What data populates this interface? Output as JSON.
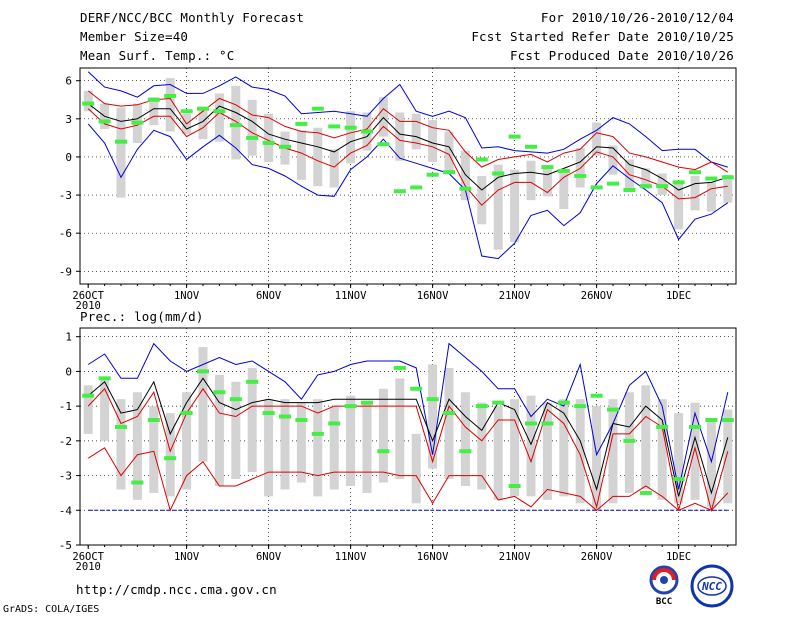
{
  "header": {
    "title": "DERF/NCC/BCC Monthly Forecast",
    "member_size": "Member Size=40",
    "variable_top": "Mean Surf. Temp.: °C",
    "forecast_period": "For 2010/10/26-2010/12/04",
    "started_refer": "Fcst Started Refer Date 2010/10/25",
    "produced": "Fcst Produced Date 2010/10/26"
  },
  "footer": {
    "url": "http://cmdp.ncc.cma.gov.cn",
    "grads": "GrADS: COLA/IGES",
    "logo_bcc_text": "BCC",
    "logo_ncc_text": "NCC"
  },
  "colors": {
    "envelope": "#0000dd",
    "ensemble": "#dd0000",
    "mean": "#000000",
    "observed": "#44ee44",
    "box": "#d3d3d3",
    "baseline": "#0000cc"
  },
  "x_ticks": [
    "26OCT",
    "1NOV",
    "6NOV",
    "11NOV",
    "16NOV",
    "21NOV",
    "26NOV",
    "1DEC"
  ],
  "x_year_label": "2010",
  "chart_data": [
    {
      "type": "line",
      "title": "Mean Surf. Temp.: °C",
      "ylabel": "°C",
      "ylim": [
        -10,
        7
      ],
      "yticks": [
        6,
        3,
        0,
        -3,
        -6,
        -9
      ],
      "x_start": "2010-10-26",
      "n_days": 40,
      "series": [
        {
          "name": "max",
          "values": [
            6.7,
            5.5,
            5.2,
            4.7,
            5.6,
            5.7,
            5.0,
            5.0,
            5.6,
            6.3,
            5.5,
            5.3,
            4.8,
            3.4,
            3.5,
            3.6,
            3.4,
            3.2,
            4.6,
            5.7,
            3.6,
            3.2,
            3.6,
            3.1,
            0.7,
            0.8,
            0.5,
            0.4,
            0.3,
            0.6,
            1.4,
            2.1,
            3.1,
            2.6,
            1.6,
            0.5,
            0.6,
            0.6,
            -0.4,
            -0.8
          ]
        },
        {
          "name": "p75",
          "values": [
            5.2,
            4.2,
            4.0,
            4.1,
            4.5,
            4.6,
            2.6,
            3.6,
            4.6,
            4.1,
            3.3,
            3.1,
            2.4,
            2.0,
            1.9,
            1.5,
            1.9,
            2.2,
            3.8,
            2.8,
            2.8,
            2.3,
            2.1,
            0.4,
            -0.8,
            -0.2,
            0.0,
            0.2,
            -0.4,
            0.3,
            0.6,
            1.9,
            1.6,
            0.3,
            0.0,
            -0.4,
            -0.8,
            -1.0,
            -0.4,
            -1.2
          ]
        },
        {
          "name": "mean",
          "values": [
            4.2,
            3.2,
            2.8,
            3.0,
            3.8,
            3.8,
            2.2,
            2.8,
            4.0,
            3.5,
            2.8,
            1.8,
            1.4,
            1.1,
            0.8,
            0.4,
            1.2,
            1.6,
            3.1,
            1.8,
            1.6,
            1.1,
            0.8,
            -1.4,
            -2.6,
            -1.6,
            -1.3,
            -1.2,
            -1.4,
            -0.9,
            -0.4,
            0.8,
            0.7,
            -0.6,
            -1.0,
            -1.7,
            -2.6,
            -2.1,
            -2.0,
            -1.6
          ]
        },
        {
          "name": "p25",
          "values": [
            3.8,
            2.6,
            2.2,
            2.5,
            3.2,
            3.2,
            1.6,
            2.3,
            3.5,
            2.8,
            1.9,
            1.3,
            0.7,
            0.3,
            -0.3,
            -0.8,
            0.3,
            0.9,
            2.4,
            1.3,
            1.1,
            0.8,
            0.2,
            -2.3,
            -3.8,
            -2.6,
            -2.0,
            -2.0,
            -2.8,
            -1.6,
            -0.9,
            0.4,
            0.0,
            -1.4,
            -1.8,
            -2.3,
            -3.3,
            -3.2,
            -2.5,
            -2.3
          ]
        },
        {
          "name": "min",
          "values": [
            2.6,
            1.1,
            -1.6,
            0.6,
            2.1,
            1.6,
            -0.2,
            0.8,
            1.7,
            0.7,
            -0.6,
            -0.9,
            -1.5,
            -2.3,
            -3.0,
            -3.1,
            -1.0,
            0.0,
            1.4,
            -0.1,
            -0.5,
            -0.9,
            -1.3,
            -2.6,
            -7.8,
            -8.0,
            -6.8,
            -4.6,
            -4.2,
            -5.4,
            -4.4,
            -2.1,
            -0.7,
            -1.7,
            -2.6,
            -3.6,
            -6.5,
            -4.9,
            -4.5,
            -3.6
          ]
        }
      ],
      "boxes": [
        [
          5.2,
          3.6
        ],
        [
          4.2,
          2.2
        ],
        [
          3.9,
          -3.2
        ],
        [
          4.2,
          1.1
        ],
        [
          4.7,
          2.5
        ],
        [
          6.2,
          2.0
        ],
        [
          3.4,
          1.8
        ],
        [
          3.7,
          1.4
        ],
        [
          5.0,
          1.2
        ],
        [
          5.6,
          -0.2
        ],
        [
          4.5,
          0.1
        ],
        [
          3.4,
          -0.4
        ],
        [
          2.0,
          -0.6
        ],
        [
          2.1,
          -1.8
        ],
        [
          2.3,
          -2.3
        ],
        [
          0.6,
          -2.4
        ],
        [
          3.6,
          -0.5
        ],
        [
          3.5,
          0.5
        ],
        [
          4.7,
          1.6
        ],
        [
          3.5,
          -0.3
        ],
        [
          3.4,
          0.6
        ],
        [
          2.9,
          -0.4
        ],
        [
          2.0,
          -1.2
        ],
        [
          0.5,
          -3.4
        ],
        [
          -1.5,
          -5.3
        ],
        [
          -0.6,
          -7.3
        ],
        [
          -1.0,
          -6.7
        ],
        [
          -0.3,
          -3.4
        ],
        [
          -0.8,
          -3.1
        ],
        [
          -1.0,
          -4.1
        ],
        [
          0.7,
          -2.4
        ],
        [
          2.7,
          0.1
        ],
        [
          0.9,
          -1.4
        ],
        [
          -0.2,
          -2.5
        ],
        [
          -0.9,
          -2.5
        ],
        [
          -1.3,
          -3.0
        ],
        [
          -2.0,
          -5.7
        ],
        [
          -1.5,
          -4.2
        ],
        [
          -2.0,
          -4.3
        ],
        [
          -1.4,
          -3.6
        ]
      ],
      "observed": [
        4.2,
        2.8,
        1.2,
        2.7,
        4.5,
        4.8,
        3.6,
        3.8,
        3.6,
        2.5,
        1.5,
        1.1,
        0.8,
        2.6,
        3.8,
        2.4,
        2.3,
        2.0,
        1.0,
        -2.7,
        -2.4,
        -1.4,
        -1.2,
        -2.5,
        -0.2,
        -1.3,
        1.6,
        0.8,
        -0.8,
        -1.1,
        -1.5,
        -2.4,
        -2.1,
        -2.6,
        -2.3,
        -2.3,
        -2.0,
        -1.2,
        -1.7,
        -1.6
      ]
    },
    {
      "type": "line",
      "title": "Prec.: log(mm/d)",
      "ylabel": "log(mm/d)",
      "ylim": [
        -5,
        1.25
      ],
      "yticks": [
        1,
        0,
        -1,
        -2,
        -3,
        -4,
        -5
      ],
      "x_start": "2010-10-26",
      "n_days": 40,
      "series": [
        {
          "name": "max",
          "values": [
            0.2,
            0.5,
            -0.2,
            -0.2,
            0.8,
            0.3,
            0.0,
            0.2,
            0.4,
            0.2,
            0.3,
            0.0,
            -0.3,
            -0.8,
            -0.1,
            0.0,
            0.2,
            0.3,
            0.3,
            0.3,
            0.1,
            -2.4,
            0.8,
            0.4,
            0.0,
            -0.5,
            -0.5,
            -1.3,
            -0.8,
            -1.0,
            0.2,
            -2.4,
            -1.5,
            -0.4,
            0.0,
            -1.0,
            -3.4,
            -1.2,
            -2.6,
            -0.6
          ]
        },
        {
          "name": "mean",
          "values": [
            -0.7,
            -0.3,
            -1.2,
            -1.1,
            -0.3,
            -1.8,
            -0.9,
            -0.2,
            -0.9,
            -1.1,
            -0.9,
            -0.8,
            -0.9,
            -0.9,
            -0.9,
            -0.8,
            -0.8,
            -0.8,
            -0.8,
            -0.8,
            -0.8,
            -2.0,
            -0.8,
            -1.3,
            -1.7,
            -0.9,
            -1.1,
            -2.1,
            -0.9,
            -1.2,
            -2.0,
            -3.4,
            -1.5,
            -1.6,
            -1.0,
            -1.4,
            -3.6,
            -1.9,
            -3.5,
            -1.9
          ]
        },
        {
          "name": "p75",
          "values": [
            -1.0,
            -0.5,
            -1.5,
            -1.3,
            -0.6,
            -2.3,
            -1.2,
            -0.5,
            -1.2,
            -1.3,
            -1.0,
            -1.0,
            -1.0,
            -1.0,
            -1.2,
            -1.0,
            -1.0,
            -1.0,
            -1.0,
            -1.0,
            -1.0,
            -2.6,
            -1.0,
            -1.6,
            -2.0,
            -1.4,
            -1.4,
            -2.6,
            -1.1,
            -1.5,
            -2.4,
            -3.9,
            -1.8,
            -1.8,
            -1.3,
            -1.6,
            -4.0,
            -2.2,
            -4.0,
            -2.3
          ]
        },
        {
          "name": "p25",
          "values": [
            -2.5,
            -2.2,
            -3.0,
            -2.4,
            -2.3,
            -4.0,
            -3.0,
            -2.6,
            -3.3,
            -3.3,
            -3.1,
            -2.9,
            -2.9,
            -2.9,
            -3.0,
            -2.9,
            -2.9,
            -2.9,
            -2.9,
            -3.0,
            -3.0,
            -3.8,
            -3.0,
            -3.0,
            -3.0,
            -3.7,
            -3.6,
            -3.9,
            -3.4,
            -3.5,
            -3.6,
            -4.0,
            -3.6,
            -3.6,
            -3.3,
            -3.6,
            -4.0,
            -3.8,
            -4.0,
            -3.5
          ]
        }
      ],
      "boxes": [
        [
          -0.4,
          -1.8
        ],
        [
          -0.2,
          -2.0
        ],
        [
          -0.8,
          -3.4
        ],
        [
          -0.6,
          -3.7
        ],
        [
          -1.0,
          -3.5
        ],
        [
          -1.2,
          -3.6
        ],
        [
          -0.6,
          -3.4
        ],
        [
          0.7,
          -2.6
        ],
        [
          -0.1,
          -3.3
        ],
        [
          -0.3,
          -3.1
        ],
        [
          0.1,
          -2.9
        ],
        [
          -0.8,
          -3.6
        ],
        [
          -0.8,
          -3.4
        ],
        [
          -0.9,
          -3.2
        ],
        [
          -0.8,
          -3.6
        ],
        [
          -1.0,
          -3.4
        ],
        [
          -0.7,
          -3.3
        ],
        [
          -0.9,
          -3.5
        ],
        [
          -0.5,
          -3.2
        ],
        [
          -0.2,
          -3.1
        ],
        [
          -1.8,
          -3.8
        ],
        [
          0.2,
          -2.8
        ],
        [
          0.1,
          -3.1
        ],
        [
          -0.6,
          -3.3
        ],
        [
          -0.9,
          -3.4
        ],
        [
          -1.0,
          -3.7
        ],
        [
          -0.8,
          -3.6
        ],
        [
          -0.7,
          -3.6
        ],
        [
          -0.9,
          -3.7
        ],
        [
          -0.8,
          -3.6
        ],
        [
          -0.8,
          -3.8
        ],
        [
          -1.0,
          -4.0
        ],
        [
          -0.8,
          -3.8
        ],
        [
          -0.6,
          -3.5
        ],
        [
          -0.4,
          -3.4
        ],
        [
          -0.8,
          -3.7
        ],
        [
          -1.2,
          -3.8
        ],
        [
          -0.9,
          -3.7
        ],
        [
          -1.4,
          -3.9
        ],
        [
          -1.1,
          -3.8
        ]
      ],
      "observed": [
        -0.7,
        -0.2,
        -1.6,
        -3.2,
        -1.4,
        -2.5,
        -1.2,
        0.0,
        -0.6,
        -0.8,
        -0.3,
        -1.2,
        -1.3,
        -1.4,
        -1.8,
        -1.5,
        -1.0,
        -0.9,
        -2.3,
        0.1,
        -0.5,
        -0.8,
        -1.2,
        -2.3,
        -1.0,
        -0.9,
        -3.3,
        -1.5,
        -1.5,
        -0.9,
        -1.0,
        -0.7,
        -1.1,
        -2.0,
        -3.5,
        -1.6,
        -3.1,
        -1.6,
        -1.4,
        -1.4
      ]
    }
  ]
}
